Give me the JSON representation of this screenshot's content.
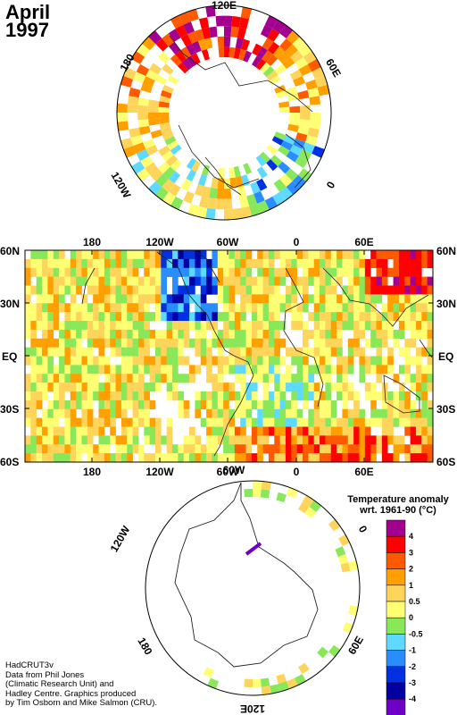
{
  "title": {
    "month": "April",
    "year": "1997"
  },
  "north_pole": {
    "labels": [
      "120E",
      "60E",
      "0",
      "120W",
      "180"
    ]
  },
  "map": {
    "lat_labels": [
      "60N",
      "30N",
      "EQ",
      "30S",
      "60S"
    ],
    "lon_labels": [
      "180",
      "120W",
      "60W",
      "0",
      "60E"
    ]
  },
  "south_pole": {
    "labels": [
      "120W",
      "60W",
      "0",
      "60E",
      "120E",
      "180"
    ]
  },
  "legend": {
    "title_line1": "Temperature anomaly",
    "title_line2": "wrt. 1961-90  (°C)",
    "entries": [
      "4",
      "3",
      "2",
      "1",
      "0.5",
      "0",
      "-0.5",
      "-1",
      "-2",
      "-3",
      "-4"
    ],
    "colors": [
      "#a3008f",
      "#ff0000",
      "#ff5a00",
      "#ff9f00",
      "#ffd45a",
      "#ffff73",
      "#88e85a",
      "#5ed9ff",
      "#2a8dff",
      "#0030e0",
      "#0000a0",
      "#7000c8"
    ]
  },
  "credit": [
    "HadCRUT3v",
    "Data from Phil Jones",
    "(Climatic Research Unit) and",
    "Hadley Centre.  Graphics produced",
    "by Tim Osborn and Mike Salmon (CRU)."
  ]
}
